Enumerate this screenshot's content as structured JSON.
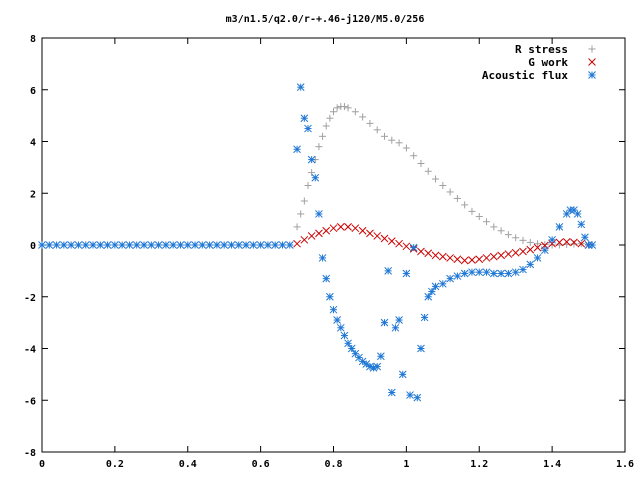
{
  "chart_data": {
    "type": "scatter",
    "title": "m3/n1.5/q2.0/r-+.46-j120/M5.0/256",
    "xlabel": "",
    "ylabel": "",
    "xlim": [
      0,
      1.6
    ],
    "ylim": [
      -8,
      8
    ],
    "xticks": [
      "0",
      "0.2",
      "0.4",
      "0.6",
      "0.8",
      "1",
      "1.2",
      "1.4",
      "1.6"
    ],
    "yticks": [
      "8",
      "6",
      "4",
      "2",
      "0",
      "-2",
      "-4",
      "-6",
      "-8"
    ],
    "legend_position": "top-right",
    "grid": false,
    "series": [
      {
        "name": "R stress",
        "marker": "plus",
        "color": "#a0a0a0",
        "points": [
          [
            0.7,
            0.7
          ],
          [
            0.71,
            1.2
          ],
          [
            0.72,
            1.7
          ],
          [
            0.73,
            2.3
          ],
          [
            0.74,
            2.8
          ],
          [
            0.75,
            3.3
          ],
          [
            0.76,
            3.8
          ],
          [
            0.77,
            4.2
          ],
          [
            0.78,
            4.6
          ],
          [
            0.79,
            4.9
          ],
          [
            0.8,
            5.15
          ],
          [
            0.81,
            5.3
          ],
          [
            0.82,
            5.35
          ],
          [
            0.83,
            5.35
          ],
          [
            0.84,
            5.3
          ],
          [
            0.86,
            5.15
          ],
          [
            0.88,
            4.95
          ],
          [
            0.9,
            4.7
          ],
          [
            0.92,
            4.45
          ],
          [
            0.94,
            4.2
          ],
          [
            0.96,
            4.05
          ],
          [
            0.98,
            3.95
          ],
          [
            1.0,
            3.75
          ],
          [
            1.02,
            3.45
          ],
          [
            1.04,
            3.15
          ],
          [
            1.06,
            2.85
          ],
          [
            1.08,
            2.55
          ],
          [
            1.1,
            2.3
          ],
          [
            1.12,
            2.05
          ],
          [
            1.14,
            1.8
          ],
          [
            1.16,
            1.55
          ],
          [
            1.18,
            1.3
          ],
          [
            1.2,
            1.1
          ],
          [
            1.22,
            0.9
          ],
          [
            1.24,
            0.7
          ],
          [
            1.26,
            0.55
          ],
          [
            1.28,
            0.4
          ],
          [
            1.3,
            0.28
          ],
          [
            1.32,
            0.18
          ],
          [
            1.34,
            0.1
          ],
          [
            1.36,
            0.05
          ],
          [
            1.38,
            0.02
          ],
          [
            1.4,
            0.0
          ],
          [
            1.42,
            0.0
          ],
          [
            1.44,
            0.02
          ],
          [
            1.46,
            0.04
          ],
          [
            1.48,
            0.05
          ],
          [
            1.5,
            0.03
          ]
        ]
      },
      {
        "name": "G work",
        "marker": "cross",
        "color": "#cc0000",
        "points": [
          [
            0.7,
            0.05
          ],
          [
            0.72,
            0.2
          ],
          [
            0.74,
            0.35
          ],
          [
            0.76,
            0.45
          ],
          [
            0.78,
            0.55
          ],
          [
            0.8,
            0.65
          ],
          [
            0.82,
            0.7
          ],
          [
            0.84,
            0.7
          ],
          [
            0.86,
            0.65
          ],
          [
            0.88,
            0.55
          ],
          [
            0.9,
            0.45
          ],
          [
            0.92,
            0.35
          ],
          [
            0.94,
            0.25
          ],
          [
            0.96,
            0.15
          ],
          [
            0.98,
            0.05
          ],
          [
            1.0,
            -0.05
          ],
          [
            1.02,
            -0.15
          ],
          [
            1.04,
            -0.25
          ],
          [
            1.06,
            -0.32
          ],
          [
            1.08,
            -0.4
          ],
          [
            1.1,
            -0.45
          ],
          [
            1.12,
            -0.5
          ],
          [
            1.14,
            -0.55
          ],
          [
            1.16,
            -0.6
          ],
          [
            1.18,
            -0.58
          ],
          [
            1.2,
            -0.55
          ],
          [
            1.22,
            -0.5
          ],
          [
            1.24,
            -0.45
          ],
          [
            1.26,
            -0.4
          ],
          [
            1.28,
            -0.35
          ],
          [
            1.3,
            -0.3
          ],
          [
            1.32,
            -0.25
          ],
          [
            1.34,
            -0.18
          ],
          [
            1.36,
            -0.1
          ],
          [
            1.38,
            -0.02
          ],
          [
            1.4,
            0.05
          ],
          [
            1.42,
            0.1
          ],
          [
            1.44,
            0.12
          ],
          [
            1.46,
            0.1
          ],
          [
            1.48,
            0.05
          ],
          [
            1.5,
            0.0
          ]
        ]
      },
      {
        "name": "Acoustic flux",
        "marker": "star",
        "color": "#1f77d4",
        "points": [
          [
            0.0,
            0.0
          ],
          [
            0.02,
            0.0
          ],
          [
            0.04,
            0.0
          ],
          [
            0.06,
            0.0
          ],
          [
            0.08,
            0.0
          ],
          [
            0.1,
            0.0
          ],
          [
            0.12,
            0.0
          ],
          [
            0.14,
            0.0
          ],
          [
            0.16,
            0.0
          ],
          [
            0.18,
            0.0
          ],
          [
            0.2,
            0.0
          ],
          [
            0.22,
            0.0
          ],
          [
            0.24,
            0.0
          ],
          [
            0.26,
            0.0
          ],
          [
            0.28,
            0.0
          ],
          [
            0.3,
            0.0
          ],
          [
            0.32,
            0.0
          ],
          [
            0.34,
            0.0
          ],
          [
            0.36,
            0.0
          ],
          [
            0.38,
            0.0
          ],
          [
            0.4,
            0.0
          ],
          [
            0.42,
            0.0
          ],
          [
            0.44,
            0.0
          ],
          [
            0.46,
            0.0
          ],
          [
            0.48,
            0.0
          ],
          [
            0.5,
            0.0
          ],
          [
            0.52,
            0.0
          ],
          [
            0.54,
            0.0
          ],
          [
            0.56,
            0.0
          ],
          [
            0.58,
            0.0
          ],
          [
            0.6,
            0.0
          ],
          [
            0.62,
            0.0
          ],
          [
            0.64,
            0.0
          ],
          [
            0.66,
            0.0
          ],
          [
            0.68,
            0.0
          ],
          [
            0.7,
            3.7
          ],
          [
            0.71,
            6.1
          ],
          [
            0.72,
            4.9
          ],
          [
            0.73,
            4.5
          ],
          [
            0.74,
            3.3
          ],
          [
            0.75,
            2.6
          ],
          [
            0.76,
            1.2
          ],
          [
            0.77,
            -0.5
          ],
          [
            0.78,
            -1.3
          ],
          [
            0.79,
            -2.0
          ],
          [
            0.8,
            -2.5
          ],
          [
            0.81,
            -2.9
          ],
          [
            0.82,
            -3.2
          ],
          [
            0.83,
            -3.5
          ],
          [
            0.84,
            -3.8
          ],
          [
            0.85,
            -4.0
          ],
          [
            0.86,
            -4.2
          ],
          [
            0.87,
            -4.35
          ],
          [
            0.88,
            -4.5
          ],
          [
            0.89,
            -4.6
          ],
          [
            0.9,
            -4.7
          ],
          [
            0.91,
            -4.75
          ],
          [
            0.92,
            -4.7
          ],
          [
            0.93,
            -4.3
          ],
          [
            0.94,
            -3.0
          ],
          [
            0.95,
            -1.0
          ],
          [
            0.96,
            -5.7
          ],
          [
            0.97,
            -3.2
          ],
          [
            0.98,
            -2.9
          ],
          [
            0.99,
            -5.0
          ],
          [
            1.0,
            -1.1
          ],
          [
            1.01,
            -5.8
          ],
          [
            1.02,
            -0.1
          ],
          [
            1.03,
            -5.9
          ],
          [
            1.04,
            -4.0
          ],
          [
            1.05,
            -2.8
          ],
          [
            1.06,
            -2.0
          ],
          [
            1.07,
            -1.8
          ],
          [
            1.08,
            -1.6
          ],
          [
            1.1,
            -1.5
          ],
          [
            1.12,
            -1.3
          ],
          [
            1.14,
            -1.2
          ],
          [
            1.16,
            -1.1
          ],
          [
            1.18,
            -1.05
          ],
          [
            1.2,
            -1.05
          ],
          [
            1.22,
            -1.05
          ],
          [
            1.24,
            -1.1
          ],
          [
            1.26,
            -1.1
          ],
          [
            1.28,
            -1.1
          ],
          [
            1.3,
            -1.05
          ],
          [
            1.32,
            -0.95
          ],
          [
            1.34,
            -0.75
          ],
          [
            1.36,
            -0.5
          ],
          [
            1.38,
            -0.2
          ],
          [
            1.4,
            0.2
          ],
          [
            1.42,
            0.7
          ],
          [
            1.44,
            1.2
          ],
          [
            1.45,
            1.35
          ],
          [
            1.46,
            1.35
          ],
          [
            1.47,
            1.2
          ],
          [
            1.48,
            0.8
          ],
          [
            1.49,
            0.3
          ],
          [
            1.5,
            0.0
          ],
          [
            1.51,
            0.0
          ]
        ]
      }
    ]
  }
}
